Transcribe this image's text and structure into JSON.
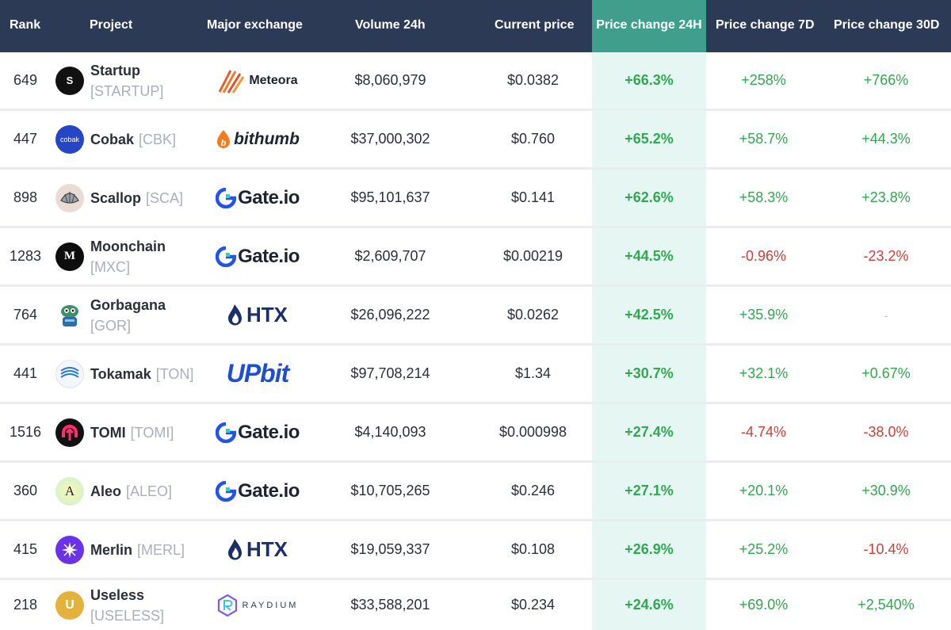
{
  "columns": {
    "rank": "Rank",
    "project": "Project",
    "exchange": "Major exchange",
    "volume": "Volume 24h",
    "price": "Current price",
    "change24h": "Price change 24H",
    "change7d": "Price change 7D",
    "change30d": "Price change 30D"
  },
  "colors": {
    "header_bg": "#2c3a55",
    "highlight_header": "#3f9f8c",
    "highlight_column": "#e6f7f3",
    "positive": "#2fa84f",
    "negative": "#d63c35"
  },
  "rows": [
    {
      "rank": "649",
      "name": "Startup",
      "symbol": "[STARTUP]",
      "icon": "startup-icon",
      "exchange": "Meteora",
      "volume": "$8,060,979",
      "price": "$0.0382",
      "change24h": "+66.3%",
      "change7d": "+258%",
      "change30d": "+766%"
    },
    {
      "rank": "447",
      "name": "Cobak",
      "symbol": "[CBK]",
      "icon": "cobak-icon",
      "exchange": "bithumb",
      "volume": "$37,000,302",
      "price": "$0.760",
      "change24h": "+65.2%",
      "change7d": "+58.7%",
      "change30d": "+44.3%"
    },
    {
      "rank": "898",
      "name": "Scallop",
      "symbol": "[SCA]",
      "icon": "scallop-icon",
      "exchange": "Gate.io",
      "volume": "$95,101,637",
      "price": "$0.141",
      "change24h": "+62.6%",
      "change7d": "+58.3%",
      "change30d": "+23.8%"
    },
    {
      "rank": "1283",
      "name": "Moonchain",
      "symbol": "[MXC]",
      "icon": "moonchain-icon",
      "exchange": "Gate.io",
      "volume": "$2,609,707",
      "price": "$0.00219",
      "change24h": "+44.5%",
      "change7d": "-0.96%",
      "change30d": "-23.2%"
    },
    {
      "rank": "764",
      "name": "Gorbagana",
      "symbol": "[GOR]",
      "icon": "gorbagana-icon",
      "exchange": "HTX",
      "volume": "$26,096,222",
      "price": "$0.0262",
      "change24h": "+42.5%",
      "change7d": "+35.9%",
      "change30d": "-"
    },
    {
      "rank": "441",
      "name": "Tokamak",
      "symbol": "[TON]",
      "icon": "tokamak-icon",
      "exchange": "UPbit",
      "volume": "$97,708,214",
      "price": "$1.34",
      "change24h": "+30.7%",
      "change7d": "+32.1%",
      "change30d": "+0.67%"
    },
    {
      "rank": "1516",
      "name": "TOMI",
      "symbol": "[TOMI]",
      "icon": "tomi-icon",
      "exchange": "Gate.io",
      "volume": "$4,140,093",
      "price": "$0.000998",
      "change24h": "+27.4%",
      "change7d": "-4.74%",
      "change30d": "-38.0%"
    },
    {
      "rank": "360",
      "name": "Aleo",
      "symbol": "[ALEO]",
      "icon": "aleo-icon",
      "exchange": "Gate.io",
      "volume": "$10,705,265",
      "price": "$0.246",
      "change24h": "+27.1%",
      "change7d": "+20.1%",
      "change30d": "+30.9%"
    },
    {
      "rank": "415",
      "name": "Merlin",
      "symbol": "[MERL]",
      "icon": "merlin-icon",
      "exchange": "HTX",
      "volume": "$19,059,337",
      "price": "$0.108",
      "change24h": "+26.9%",
      "change7d": "+25.2%",
      "change30d": "-10.4%"
    },
    {
      "rank": "218",
      "name": "Useless",
      "symbol": "[USELESS]",
      "icon": "useless-icon",
      "exchange": "RAYDIUM",
      "volume": "$33,588,201",
      "price": "$0.234",
      "change24h": "+24.6%",
      "change7d": "+69.0%",
      "change30d": "+2,540%"
    }
  ],
  "icon_text": {
    "startup": "S",
    "cobak": "cobak",
    "moonchain": "M",
    "aleo": "A",
    "useless": "U"
  }
}
